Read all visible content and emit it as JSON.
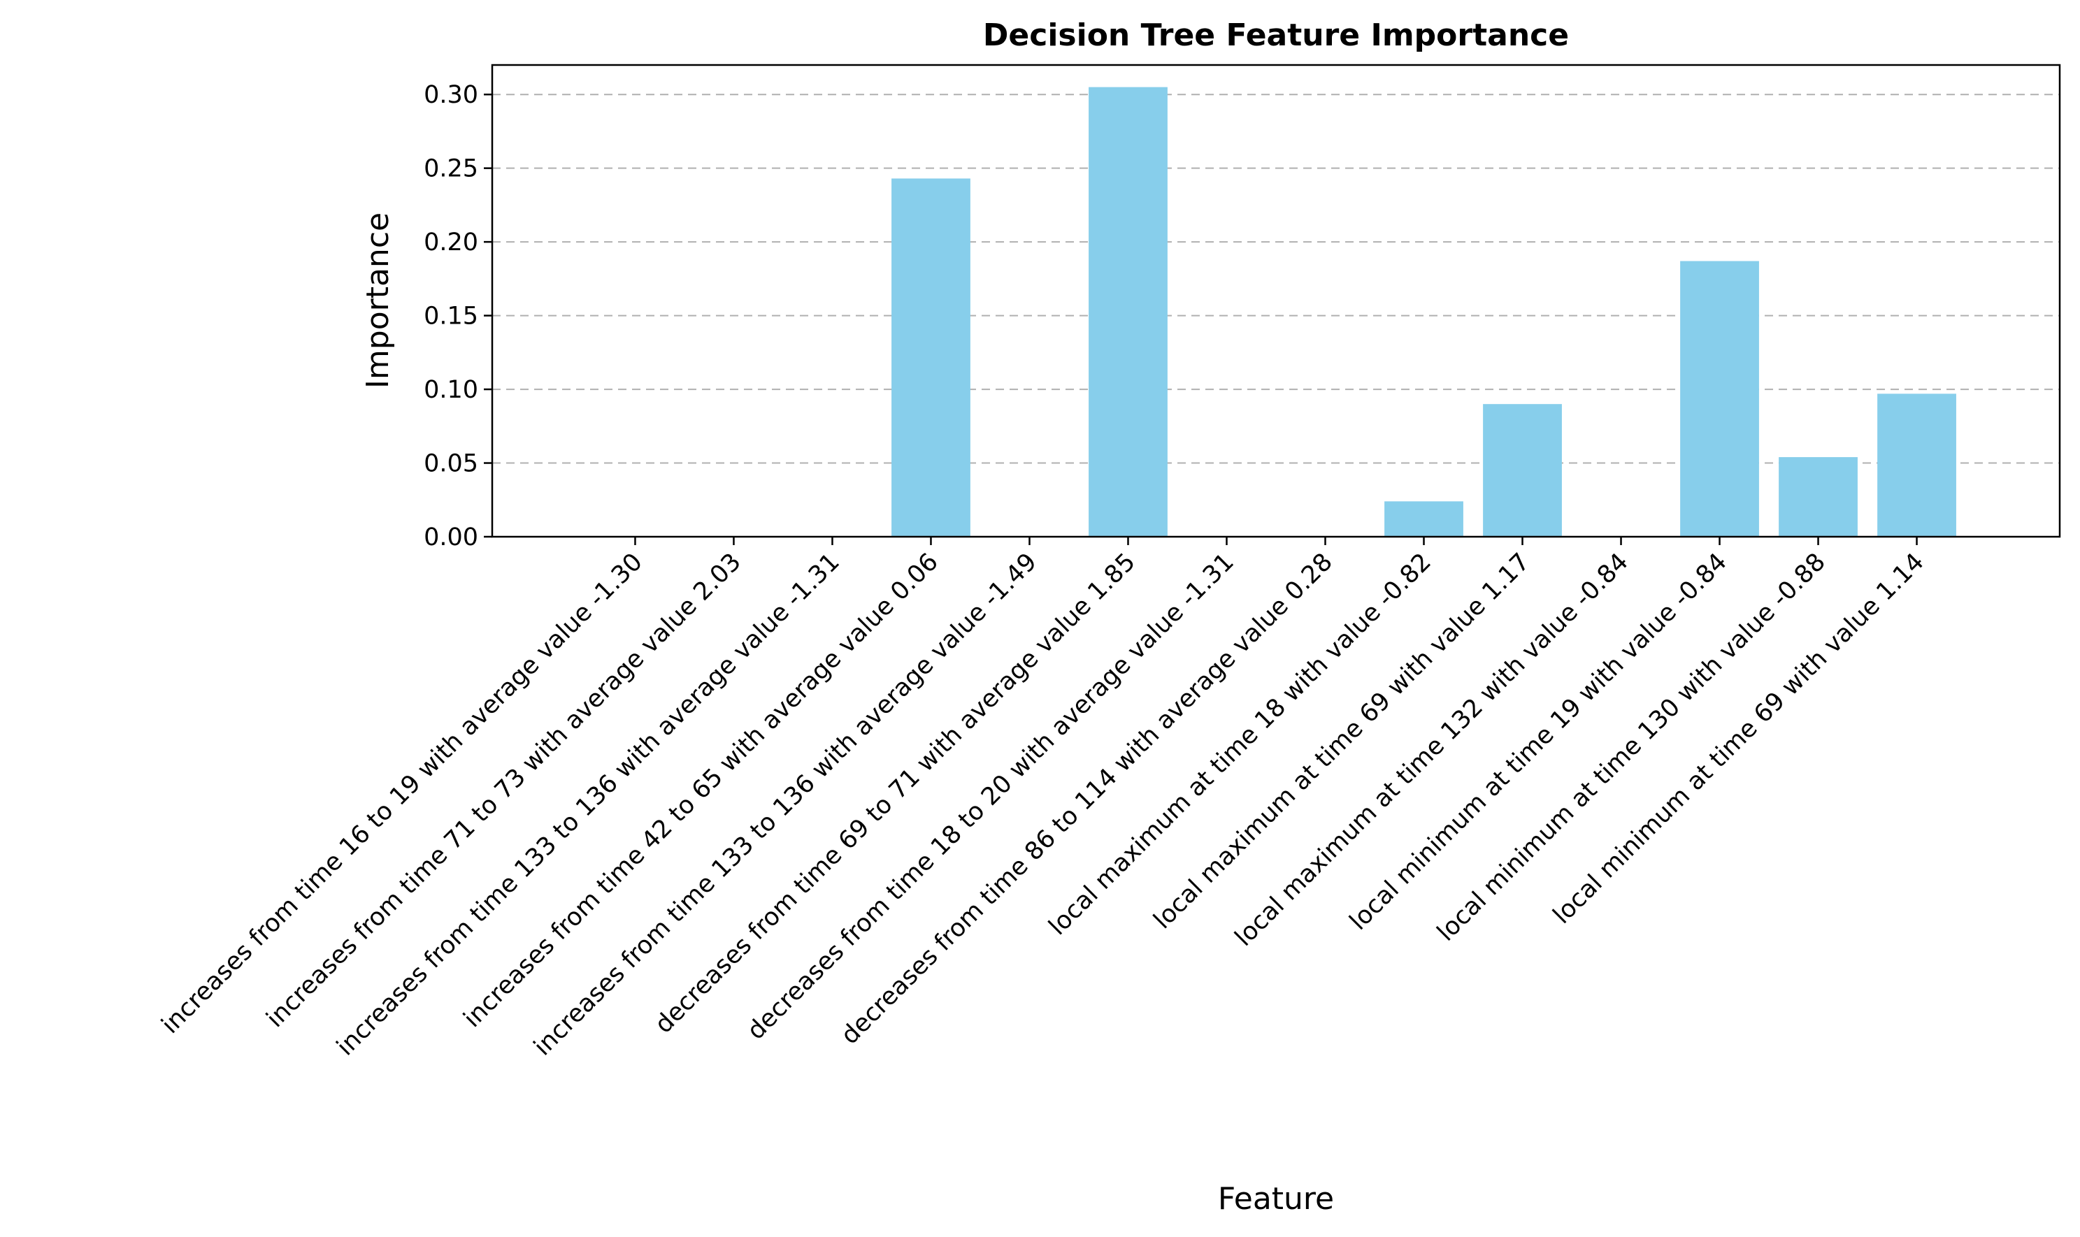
{
  "chart_data": {
    "type": "bar",
    "title": "Decision Tree Feature Importance",
    "xlabel": "Feature",
    "ylabel": "Importance",
    "ylim": [
      0,
      0.32
    ],
    "yticks": [
      0.0,
      0.05,
      0.1,
      0.15,
      0.2,
      0.25,
      0.3
    ],
    "ytick_labels": [
      "0.00",
      "0.05",
      "0.10",
      "0.15",
      "0.20",
      "0.25",
      "0.30"
    ],
    "grid": "y-dashed",
    "bar_color": "#87ceeb",
    "categories": [
      "increases from time 16 to 19 with average value -1.30",
      "increases from time 71 to 73 with average value 2.03",
      "increases from time 133 to 136 with average value -1.31",
      "increases from time 42 to 65 with average value 0.06",
      "increases from time 133 to 136 with average value -1.49",
      "decreases from time 69 to 71 with average value 1.85",
      "decreases from time 18 to 20 with average value -1.31",
      "decreases from time 86 to 114 with average value 0.28",
      "local maximum at time 18 with value -0.82",
      "local maximum at time 69 with value 1.17",
      "local maximum at time 132 with value -0.84",
      "local minimum at time 19 with value -0.84",
      "local minimum at time 130 with value -0.88",
      "local minimum at time 69 with value 1.14"
    ],
    "values": [
      0,
      0,
      0,
      0.243,
      0,
      0.305,
      0,
      0,
      0.024,
      0.09,
      0,
      0.187,
      0.054,
      0.097
    ]
  }
}
